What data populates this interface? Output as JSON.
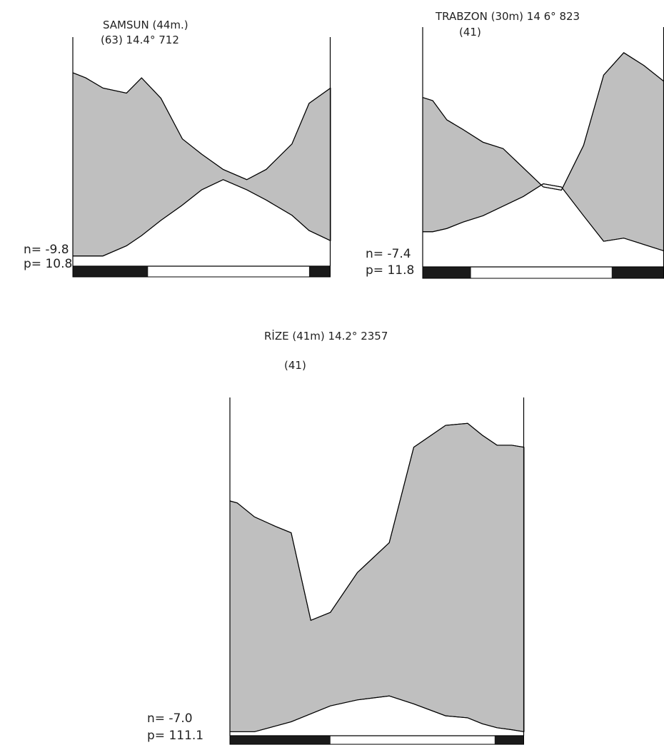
{
  "colors": {
    "dry_period_fill": "#bfbfbf",
    "wet_period_fill": "#f2f2f2",
    "frost_bar": "#1a1a1a",
    "line": "#000000"
  },
  "chart_data": [
    {
      "type": "area",
      "station": "SAMSUN",
      "title_line1": "SAMSUN (44m.)",
      "title_line2": "(63) 14.4° 712",
      "min_label": "n= -9.8",
      "max_label": "p= 10.8",
      "x": [
        0.0,
        0.6,
        1.4,
        2.5,
        3.2,
        4.1,
        5.1,
        6.0,
        7.0,
        8.1,
        9.0,
        10.2,
        11.0,
        12.0
      ],
      "upper_curve": [
        38,
        37,
        35,
        34,
        37,
        33,
        25,
        22,
        19,
        17,
        19,
        24,
        32,
        35
      ],
      "lower_curve": [
        2,
        2,
        2,
        4,
        6,
        9,
        12,
        15,
        17,
        15,
        13,
        10,
        7,
        5
      ],
      "frost_months": [
        [
          0,
          3.5
        ],
        [
          11,
          12
        ]
      ]
    },
    {
      "type": "area",
      "station": "TRABZON",
      "title_line1": "TRABZON (30m) 14 6° 823",
      "title_line2": "(41)",
      "min_label": "n= -7.4",
      "max_label": "p= 11.8",
      "x": [
        0.0,
        0.5,
        1.2,
        2.0,
        3.0,
        4.0,
        5.0,
        6.0,
        6.9,
        8.0,
        9.0,
        10.0,
        11.0,
        12.0
      ],
      "upper_curve": [
        53,
        52,
        46,
        43,
        39,
        37,
        31,
        25,
        24,
        38,
        60,
        67,
        63,
        58
      ],
      "lower_curve": [
        11,
        11,
        12,
        14,
        16,
        19,
        22,
        26,
        25,
        16,
        8,
        9,
        7,
        5
      ],
      "frost_months": [
        [
          0,
          2.4
        ],
        [
          9.4,
          12
        ]
      ]
    },
    {
      "type": "area",
      "station": "RİZE",
      "title_line1": "RİZE (41m) 14.2° 2357",
      "title_line2": "(41)",
      "min_label": "n= -7.0",
      "max_label": "p= 111.1",
      "x": [
        0.0,
        0.3,
        1.0,
        1.9,
        2.5,
        3.3,
        4.1,
        5.2,
        6.5,
        7.5,
        8.8,
        9.7,
        10.3,
        10.9,
        11.5,
        12.0
      ],
      "upper_curve": [
        118,
        117,
        110,
        105,
        102,
        58,
        62,
        82,
        97,
        145,
        156,
        157,
        151,
        146,
        146,
        145
      ],
      "lower_curve": [
        2,
        2,
        2,
        5,
        7,
        11,
        15,
        18,
        20,
        16,
        10,
        9,
        6,
        4,
        3,
        2
      ],
      "frost_months": [
        [
          0,
          4.1
        ],
        [
          10.8,
          12
        ]
      ]
    }
  ]
}
